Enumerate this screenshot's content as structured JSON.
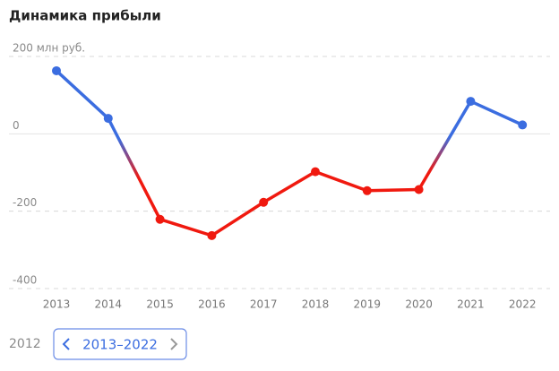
{
  "chart_data": {
    "type": "line",
    "title": "Динамика прибыли",
    "categories": [
      "2013",
      "2014",
      "2015",
      "2016",
      "2017",
      "2018",
      "2019",
      "2020",
      "2021",
      "2022"
    ],
    "values": [
      163,
      40,
      -221,
      -263,
      -177,
      -98,
      -147,
      -144,
      84,
      23
    ],
    "positive_color": "#3b6de0",
    "negative_color": "#f0190f",
    "ylim": [
      -400,
      200
    ],
    "yticks": [
      -400,
      -200,
      0,
      {
        "value": 200,
        "label": "200 млн руб."
      }
    ],
    "grid": true
  },
  "pager": {
    "previous": "2012",
    "current": "2013–2022"
  }
}
